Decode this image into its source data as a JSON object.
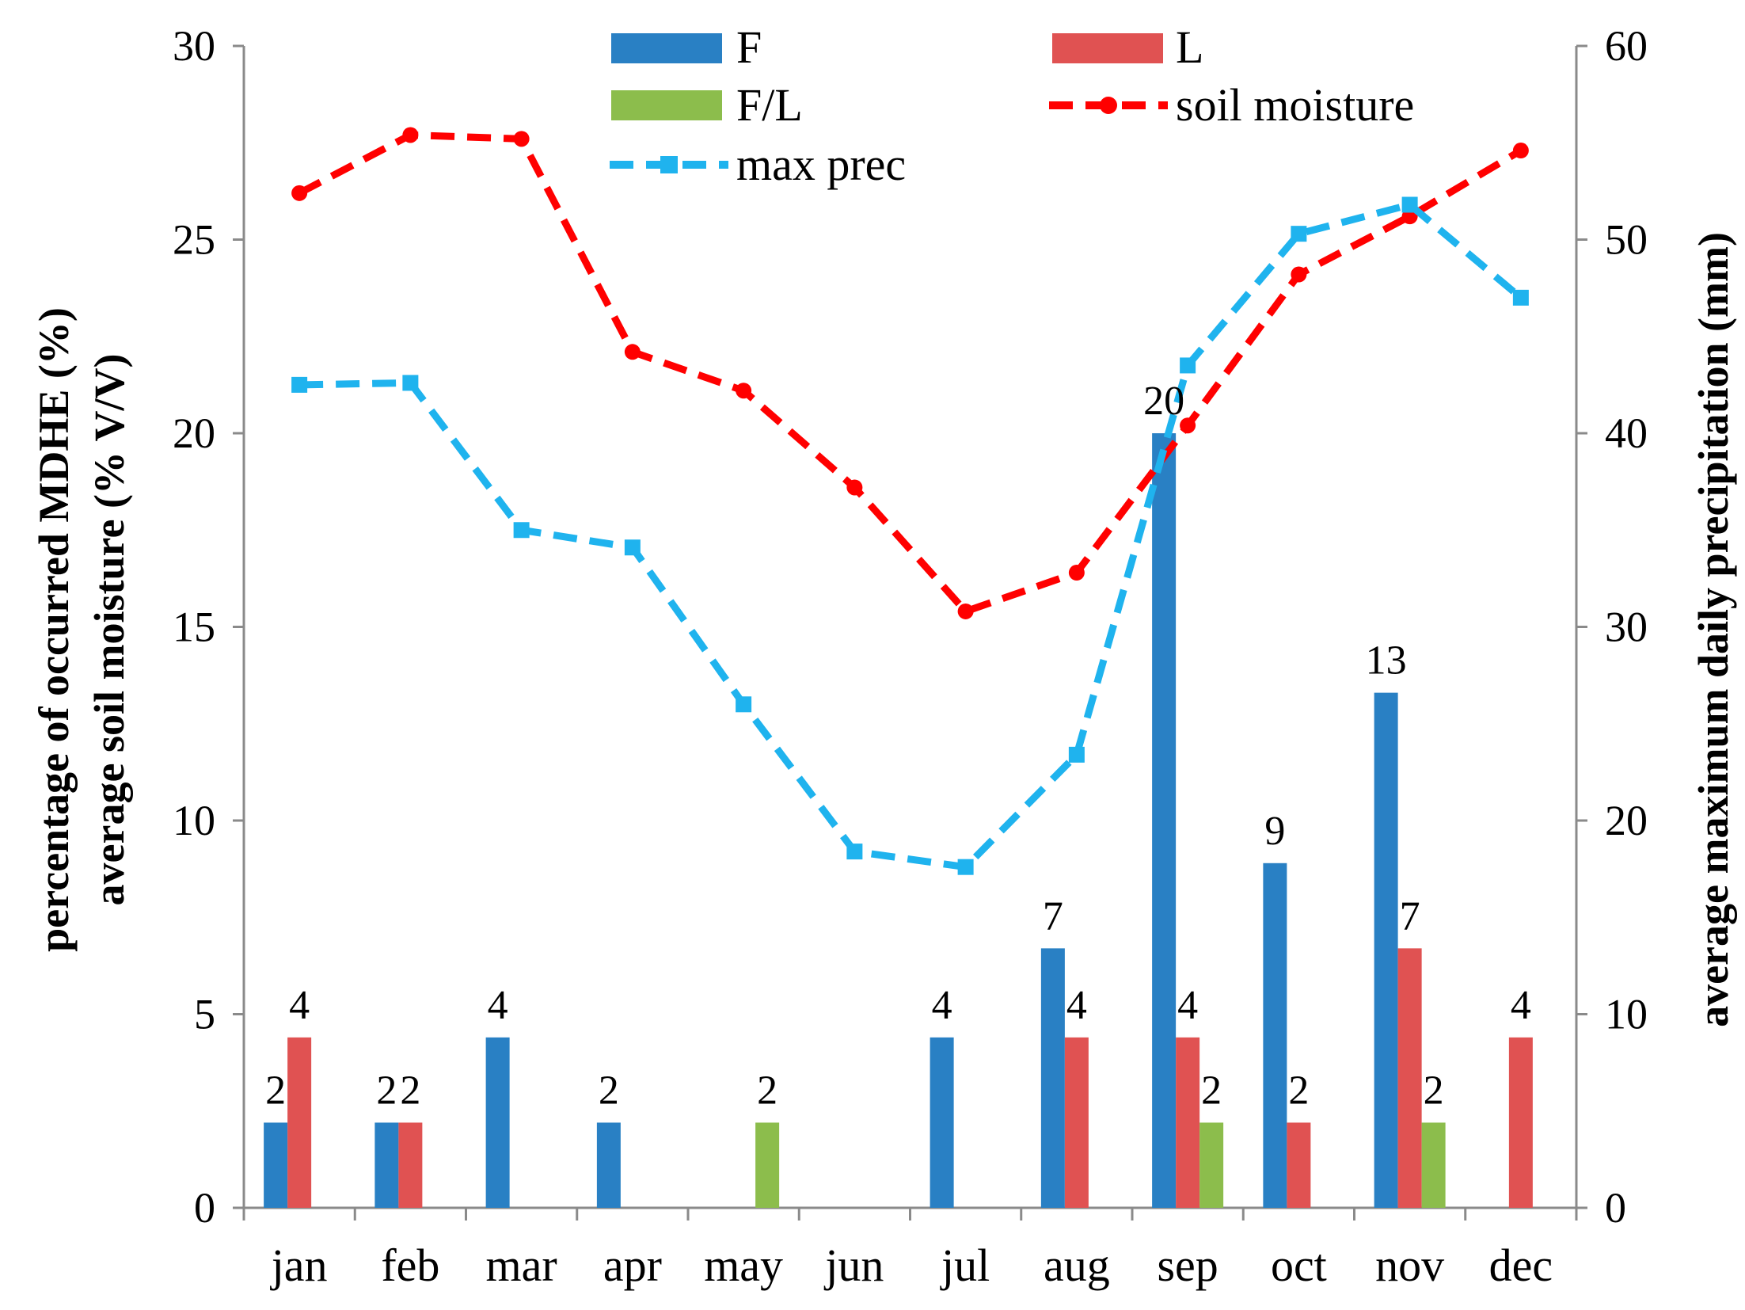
{
  "chart_data": {
    "type": "bar+line",
    "categories": [
      "jan",
      "feb",
      "mar",
      "apr",
      "may",
      "jun",
      "jul",
      "aug",
      "sep",
      "oct",
      "nov",
      "dec"
    ],
    "bar_series": [
      {
        "name": "F",
        "color": "#2980c4",
        "values": [
          2.2,
          2.2,
          4.4,
          2.2,
          0,
          0,
          4.4,
          6.7,
          20,
          8.9,
          13.3,
          0
        ],
        "labels": [
          "2",
          "2",
          "4",
          "2",
          "",
          "",
          "4",
          "7",
          "20",
          "9",
          "13",
          ""
        ]
      },
      {
        "name": "L",
        "color": "#e05252",
        "values": [
          4.4,
          2.2,
          0,
          0,
          0,
          0,
          0,
          4.4,
          4.4,
          2.2,
          6.7,
          4.4
        ],
        "labels": [
          "4",
          "2",
          "",
          "",
          "",
          "",
          "",
          "4",
          "4",
          "2",
          "7",
          "4"
        ]
      },
      {
        "name": "F/L",
        "color": "#8cbd4c",
        "values": [
          0,
          0,
          0,
          0,
          2.2,
          0,
          0,
          0,
          2.2,
          0,
          2.2,
          0
        ],
        "labels": [
          "",
          "",
          "",
          "",
          "2",
          "",
          "",
          "",
          "2",
          "",
          "2",
          ""
        ]
      }
    ],
    "line_series": [
      {
        "name": "soil moisture",
        "color": "#ff0000",
        "marker": "circle",
        "axis": "left",
        "values": [
          26.2,
          27.7,
          27.6,
          22.1,
          21.1,
          18.6,
          15.4,
          16.4,
          20.2,
          24.1,
          25.6,
          27.3
        ]
      },
      {
        "name": "max prec",
        "color": "#1fb3ee",
        "marker": "square",
        "axis": "right",
        "values": [
          42.5,
          42.6,
          35.0,
          34.1,
          26.0,
          18.4,
          17.6,
          23.4,
          43.5,
          50.3,
          51.8,
          47.0
        ]
      }
    ],
    "ylabel_left": [
      "percentage of occurred MDHE (%)",
      "average soil moisture (% V/V)"
    ],
    "ylabel_right": "average maximum daily precipitation (mm)",
    "ylim_left": [
      0,
      30
    ],
    "yticks_left": [
      0,
      5,
      10,
      15,
      20,
      25,
      30
    ],
    "ylim_right": [
      0,
      60
    ],
    "yticks_right": [
      0,
      10,
      20,
      30,
      40,
      50,
      60
    ],
    "grid": false,
    "legend_position": "top-center"
  }
}
